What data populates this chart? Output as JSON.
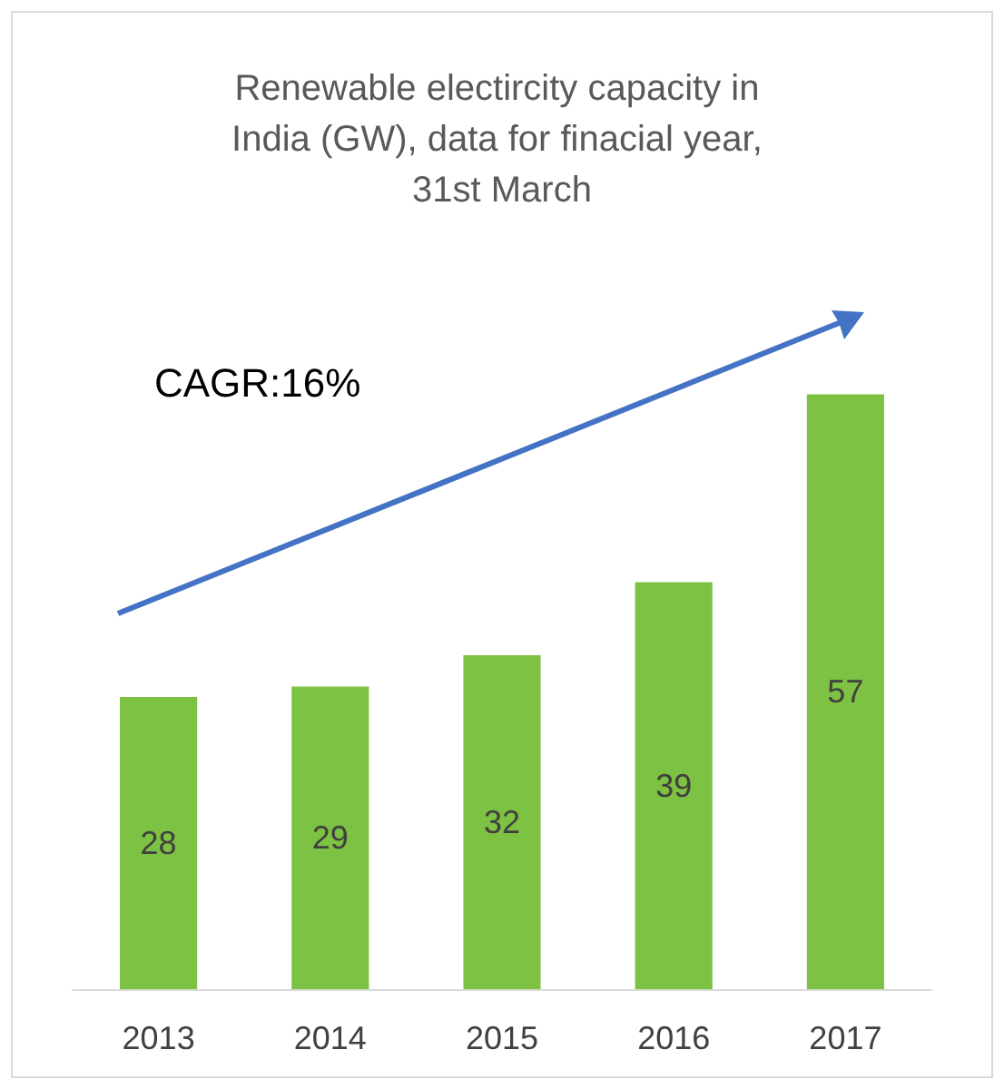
{
  "chart_data": {
    "type": "bar",
    "title": "Renewable electircity capacity in India (GW), data for finacial year, 31st March",
    "categories": [
      "2013",
      "2014",
      "2015",
      "2016",
      "2017"
    ],
    "values": [
      28,
      29,
      32,
      39,
      57
    ],
    "color": "#7dc242",
    "data_labels": true,
    "annotations": [
      "CAGR:16%"
    ]
  }
}
